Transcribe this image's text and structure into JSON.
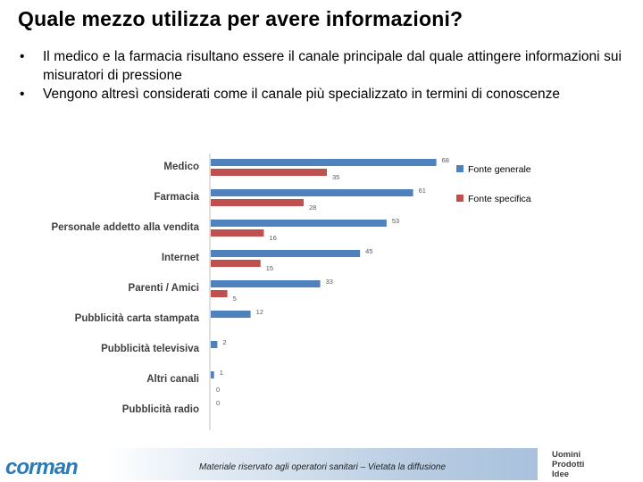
{
  "title": "Quale mezzo utilizza per avere informazioni?",
  "bullets": [
    "Il medico e la farmacia risultano essere il canale principale dal quale attingere informazioni sui misuratori di pressione",
    "Vengono altresì considerati come il canale più specializzato in termini di conoscenze"
  ],
  "bullet_symbol": "•",
  "chart_data": {
    "type": "bar",
    "orientation": "horizontal",
    "categories": [
      "Medico",
      "Farmacia",
      "Personale addetto alla vendita",
      "Internet",
      "Parenti / Amici",
      "Pubblicità carta stampata",
      "Pubblicità televisiva",
      "Altri canali",
      "Pubblicità radio"
    ],
    "series": [
      {
        "name": "Fonte generale",
        "color": "#4f81bd",
        "values": [
          68,
          61,
          53,
          45,
          33,
          12,
          2,
          1,
          0
        ]
      },
      {
        "name": "Fonte specifica",
        "color": "#c0504d",
        "values": [
          35,
          28,
          16,
          15,
          5,
          null,
          null,
          0,
          null
        ]
      }
    ],
    "xlim": [
      0,
      70
    ],
    "legend_position": "right",
    "grid": false
  },
  "footer": {
    "note": "Materiale riservato agli operatori sanitari – Vietata la diffusione"
  },
  "logo": {
    "text": "corman",
    "tagline": [
      "Uomini",
      "Prodotti",
      "Idee"
    ],
    "color": "#2a7ab8"
  }
}
